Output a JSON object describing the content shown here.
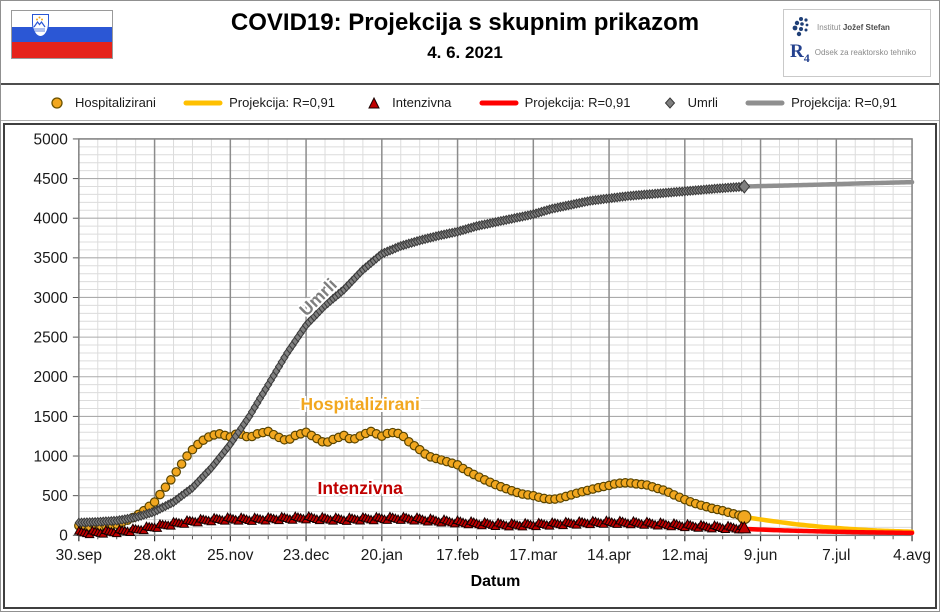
{
  "header": {
    "title": "COVID19: Projekcija s skupnim prikazom",
    "date": "4. 6. 2021",
    "flag": {
      "name": "slovenia-flag",
      "colors": [
        "#FFFFFF",
        "#2B57D5",
        "#E5231B"
      ]
    },
    "logo": {
      "line1_light": "Institut",
      "line1_bold": "Jožef Stefan",
      "line2_r": "R",
      "line2_sub": "4",
      "line2_text": "Odsek za reaktorsko tehniko",
      "dot_color": "#1F3F77"
    }
  },
  "legend": [
    {
      "label": "Hospitalizirani",
      "marker": "circle",
      "color": "#F2A71F",
      "edge": "#6b5200"
    },
    {
      "label": "Projekcija: R=0,91",
      "marker": "line",
      "color": "#FFC000"
    },
    {
      "label": "Intenzivna",
      "marker": "triangle",
      "color": "#C00000",
      "edge": "#1a0000"
    },
    {
      "label": "Projekcija: R=0,91",
      "marker": "line",
      "color": "#FF0000"
    },
    {
      "label": "Umrli",
      "marker": "diamond",
      "color": "#7F7F7F",
      "edge": "#3a3a3a"
    },
    {
      "label": "Projekcija: R=0,91",
      "marker": "line",
      "color": "#8F8F8F"
    }
  ],
  "chart_data": {
    "type": "line",
    "title": "COVID19: Projekcija s skupnim prikazom",
    "xlabel": "Datum",
    "ylabel": "",
    "ylim": [
      0,
      5000
    ],
    "y_major_step": 500,
    "y_minor_step": 100,
    "x_range_days": [
      0,
      308
    ],
    "x_tick_days": [
      0,
      28,
      56,
      84,
      112,
      140,
      168,
      196,
      224,
      252,
      280,
      308
    ],
    "x_tick_labels": [
      "30.sep",
      "28.okt",
      "25.nov",
      "23.dec",
      "20.jan",
      "17.feb",
      "17.mar",
      "14.apr",
      "12.maj",
      "9.jun",
      "7.jul",
      "4.avg"
    ],
    "x_minor_step_days": 7,
    "grid": {
      "minor_color": "#dcdcdc",
      "h_major_color": "#ababab",
      "v_major_color": "#8c8c8c",
      "border_color": "#7f7f7f"
    },
    "annotations": [
      {
        "text": "Umrli",
        "color": "#7f7f7f",
        "day": 90,
        "value": 2950,
        "rotation": -45
      },
      {
        "text": "Hospitalizirani",
        "color": "#F2A71F",
        "day": 104,
        "value": 1580,
        "rotation": 0
      },
      {
        "text": "Intenzivna",
        "color": "#C00000",
        "day": 104,
        "value": 520,
        "rotation": 0
      }
    ],
    "series": [
      {
        "name": "Projekcija: R=0,91 (hospitalizirani)",
        "style": "projection",
        "color": "#FFC000",
        "points": [
          [
            246,
            230
          ],
          [
            255,
            185
          ],
          [
            265,
            140
          ],
          [
            275,
            105
          ],
          [
            285,
            80
          ],
          [
            295,
            60
          ],
          [
            308,
            45
          ]
        ]
      },
      {
        "name": "Projekcija: R=0,91 (intenzivna)",
        "style": "projection",
        "color": "#FF0000",
        "points": [
          [
            246,
            80
          ],
          [
            260,
            62
          ],
          [
            275,
            48
          ],
          [
            290,
            38
          ],
          [
            308,
            30
          ]
        ]
      },
      {
        "name": "Projekcija: R=0,91 (umrli)",
        "style": "projection",
        "color": "#8F8F8F",
        "points": [
          [
            246,
            4400
          ],
          [
            270,
            4420
          ],
          [
            290,
            4440
          ],
          [
            308,
            4455
          ]
        ]
      },
      {
        "name": "Hospitalizirani",
        "style": "markers",
        "marker": "circle",
        "step": 2,
        "color": "#F2A71F",
        "edge": "#5a4500",
        "points": [
          [
            0,
            120
          ],
          [
            4,
            105
          ],
          [
            7,
            110
          ],
          [
            10,
            120
          ],
          [
            14,
            140
          ],
          [
            18,
            190
          ],
          [
            21,
            240
          ],
          [
            24,
            310
          ],
          [
            28,
            420
          ],
          [
            31,
            560
          ],
          [
            34,
            700
          ],
          [
            37,
            850
          ],
          [
            40,
            1000
          ],
          [
            43,
            1120
          ],
          [
            46,
            1200
          ],
          [
            49,
            1260
          ],
          [
            52,
            1280
          ],
          [
            56,
            1240
          ],
          [
            59,
            1290
          ],
          [
            63,
            1230
          ],
          [
            66,
            1280
          ],
          [
            70,
            1310
          ],
          [
            73,
            1250
          ],
          [
            77,
            1190
          ],
          [
            80,
            1260
          ],
          [
            84,
            1300
          ],
          [
            87,
            1240
          ],
          [
            91,
            1160
          ],
          [
            94,
            1210
          ],
          [
            98,
            1260
          ],
          [
            101,
            1200
          ],
          [
            105,
            1270
          ],
          [
            108,
            1310
          ],
          [
            112,
            1250
          ],
          [
            115,
            1300
          ],
          [
            119,
            1280
          ],
          [
            122,
            1180
          ],
          [
            126,
            1080
          ],
          [
            129,
            1000
          ],
          [
            133,
            960
          ],
          [
            136,
            930
          ],
          [
            140,
            890
          ],
          [
            143,
            820
          ],
          [
            147,
            750
          ],
          [
            150,
            700
          ],
          [
            154,
            640
          ],
          [
            157,
            600
          ],
          [
            161,
            550
          ],
          [
            164,
            520
          ],
          [
            168,
            500
          ],
          [
            171,
            470
          ],
          [
            175,
            450
          ],
          [
            178,
            470
          ],
          [
            182,
            510
          ],
          [
            185,
            540
          ],
          [
            189,
            575
          ],
          [
            192,
            600
          ],
          [
            196,
            630
          ],
          [
            199,
            655
          ],
          [
            203,
            665
          ],
          [
            206,
            650
          ],
          [
            210,
            635
          ],
          [
            213,
            600
          ],
          [
            217,
            560
          ],
          [
            220,
            510
          ],
          [
            224,
            450
          ],
          [
            227,
            410
          ],
          [
            231,
            370
          ],
          [
            234,
            340
          ],
          [
            238,
            310
          ],
          [
            241,
            280
          ],
          [
            245,
            245
          ],
          [
            246,
            230
          ]
        ]
      },
      {
        "name": "Umrli",
        "style": "markers",
        "marker": "diamond",
        "step": 1,
        "color": "#7F7F7F",
        "edge": "#3a3a3a",
        "points": [
          [
            0,
            160
          ],
          [
            7,
            168
          ],
          [
            14,
            185
          ],
          [
            21,
            225
          ],
          [
            28,
            300
          ],
          [
            35,
            420
          ],
          [
            42,
            600
          ],
          [
            49,
            850
          ],
          [
            56,
            1150
          ],
          [
            63,
            1500
          ],
          [
            70,
            1900
          ],
          [
            77,
            2300
          ],
          [
            84,
            2650
          ],
          [
            91,
            2900
          ],
          [
            98,
            3100
          ],
          [
            105,
            3350
          ],
          [
            112,
            3550
          ],
          [
            119,
            3650
          ],
          [
            126,
            3720
          ],
          [
            133,
            3780
          ],
          [
            140,
            3830
          ],
          [
            147,
            3900
          ],
          [
            154,
            3950
          ],
          [
            161,
            4000
          ],
          [
            168,
            4050
          ],
          [
            175,
            4120
          ],
          [
            182,
            4170
          ],
          [
            189,
            4220
          ],
          [
            196,
            4250
          ],
          [
            203,
            4280
          ],
          [
            210,
            4300
          ],
          [
            217,
            4320
          ],
          [
            224,
            4340
          ],
          [
            231,
            4360
          ],
          [
            238,
            4380
          ],
          [
            246,
            4400
          ]
        ]
      },
      {
        "name": "Intenzivna",
        "style": "markers",
        "marker": "triangle",
        "step": 1,
        "color": "#C00000",
        "edge": "#1a0000",
        "points": [
          [
            0,
            30
          ],
          [
            7,
            35
          ],
          [
            14,
            45
          ],
          [
            21,
            65
          ],
          [
            28,
            105
          ],
          [
            35,
            145
          ],
          [
            42,
            175
          ],
          [
            49,
            195
          ],
          [
            56,
            205
          ],
          [
            63,
            198
          ],
          [
            70,
            205
          ],
          [
            77,
            212
          ],
          [
            84,
            218
          ],
          [
            91,
            205
          ],
          [
            98,
            198
          ],
          [
            105,
            205
          ],
          [
            112,
            210
          ],
          [
            119,
            212
          ],
          [
            126,
            200
          ],
          [
            133,
            180
          ],
          [
            140,
            165
          ],
          [
            147,
            148
          ],
          [
            154,
            135
          ],
          [
            161,
            128
          ],
          [
            168,
            132
          ],
          [
            175,
            140
          ],
          [
            182,
            150
          ],
          [
            189,
            158
          ],
          [
            196,
            163
          ],
          [
            203,
            158
          ],
          [
            210,
            148
          ],
          [
            217,
            135
          ],
          [
            224,
            120
          ],
          [
            231,
            108
          ],
          [
            238,
            98
          ],
          [
            245,
            90
          ],
          [
            246,
            88
          ]
        ]
      }
    ]
  }
}
